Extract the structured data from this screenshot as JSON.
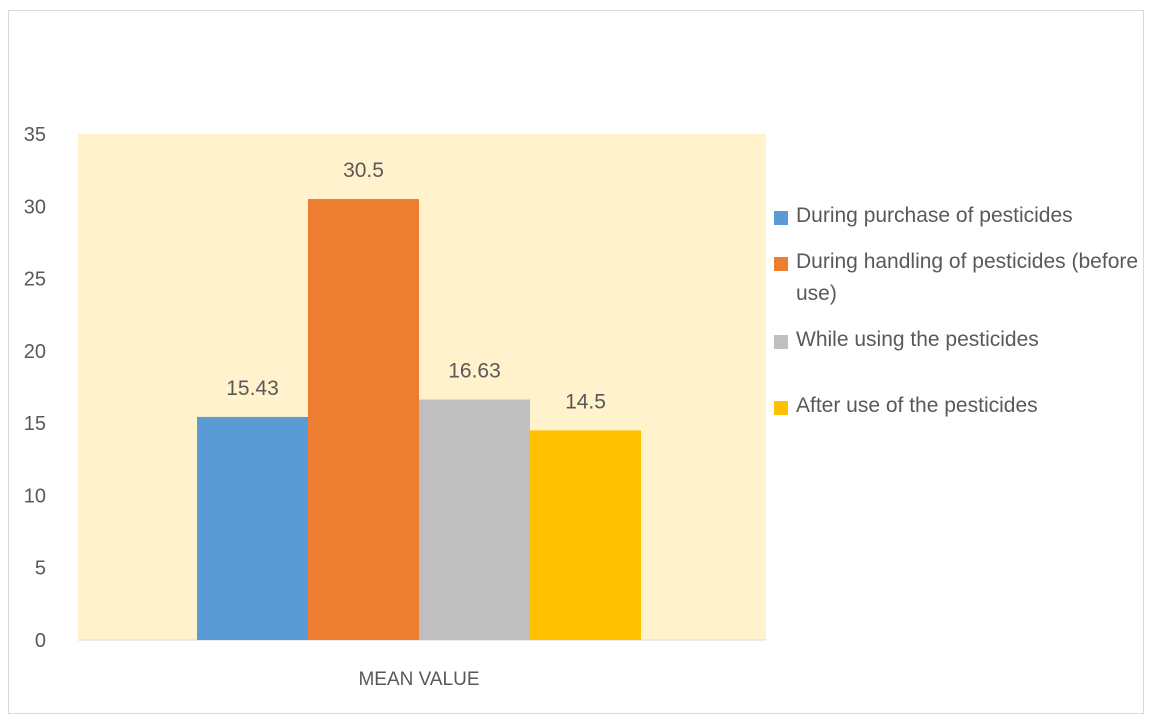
{
  "chart_data": {
    "type": "bar",
    "categories": [
      "MEAN VALUE"
    ],
    "series": [
      {
        "name": "During   purchase of pesticides",
        "values": [
          15.43
        ],
        "color": "#5b9bd5"
      },
      {
        "name": "During handling of pesticides (before use)",
        "values": [
          30.5
        ],
        "color": "#ed7d31"
      },
      {
        "name": "While using the pesticides",
        "values": [
          16.63
        ],
        "color": "#bfbfbf"
      },
      {
        "name": "After use of the pesticides",
        "values": [
          14.5
        ],
        "color": "#ffc000"
      }
    ],
    "data_labels": [
      "15.43",
      "30.5",
      "16.63",
      "14.5"
    ],
    "y_ticks": [
      "0",
      "5",
      "10",
      "15",
      "20",
      "25",
      "30",
      "35"
    ],
    "ylim": [
      0,
      35
    ],
    "grid": false,
    "legend_position": "right",
    "plot_background": "#fff2cc"
  }
}
